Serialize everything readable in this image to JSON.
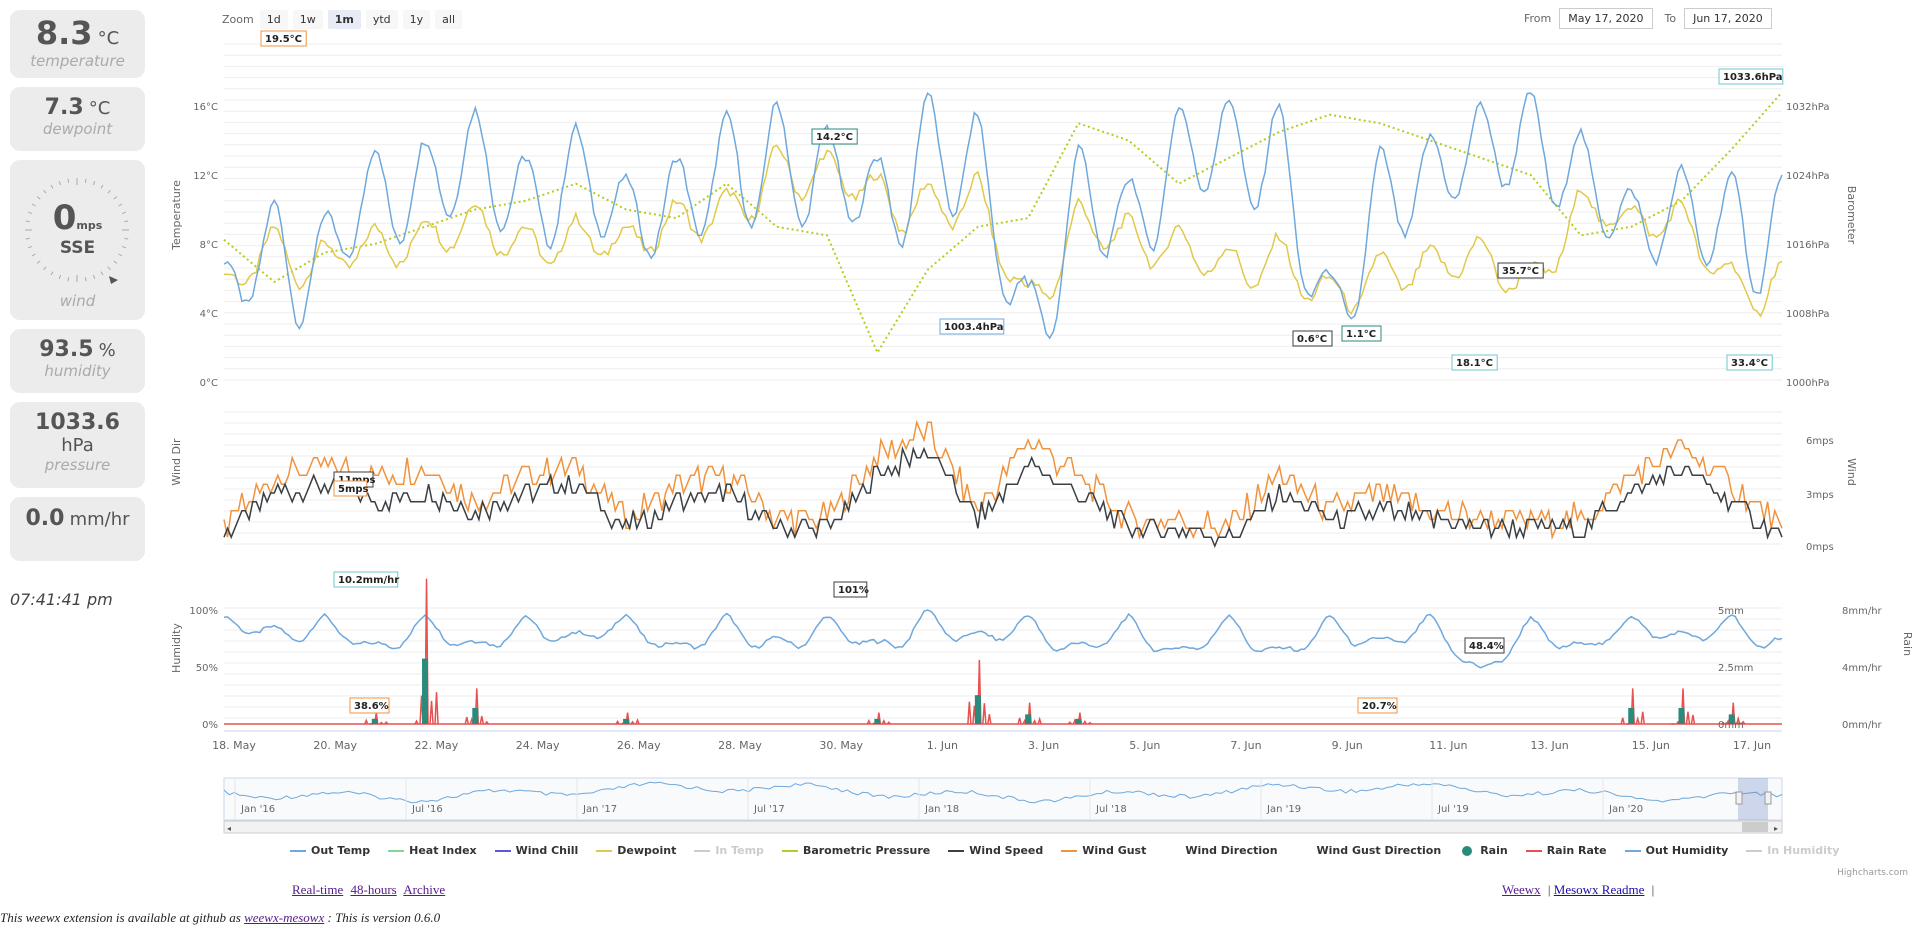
{
  "cards": {
    "temperature": {
      "value": "8.3",
      "unit": "°C",
      "label": "temperature"
    },
    "dewpoint": {
      "value": "7.3",
      "unit": "°C",
      "label": "dewpoint"
    },
    "wind": {
      "value": "0",
      "unit": "mps",
      "direction": "SSE",
      "label": "wind"
    },
    "humidity": {
      "value": "93.5",
      "unit": "%",
      "label": "humidity"
    },
    "pressure": {
      "value": "1033.6",
      "unit": "hPa",
      "label": "pressure"
    },
    "rain": {
      "value": "0.0",
      "unit": "mm/hr",
      "label": "rain"
    }
  },
  "clock": "07:41:41 pm",
  "zoom": {
    "label": "Zoom",
    "buttons": [
      "1d",
      "1w",
      "1m",
      "ytd",
      "1y",
      "all"
    ],
    "active": "1m"
  },
  "range": {
    "from_label": "From",
    "from": "May 17, 2020",
    "to_label": "To",
    "to": "Jun 17, 2020"
  },
  "chart_data": [
    {
      "type": "line",
      "title": "",
      "ylabel": "Temperature",
      "ylabel_right": "Barometer",
      "y_ticks": [
        "16°C",
        "12°C",
        "8°C",
        "4°C",
        "0°C"
      ],
      "y_ticks_right": [
        "1032hPa",
        "1024hPa",
        "1016hPa",
        "1008hPa",
        "1000hPa"
      ],
      "ylim": [
        0,
        18
      ],
      "ylim_right": [
        1000,
        1036
      ],
      "x": [
        "May 17",
        "May 18",
        "May 19",
        "May 20",
        "May 21",
        "May 22",
        "May 23",
        "May 24",
        "May 25",
        "May 26",
        "May 27",
        "May 28",
        "May 29",
        "May 30",
        "May 31",
        "Jun 1",
        "Jun 2",
        "Jun 3",
        "Jun 4",
        "Jun 5",
        "Jun 6",
        "Jun 7",
        "Jun 8",
        "Jun 9",
        "Jun 10",
        "Jun 11",
        "Jun 12",
        "Jun 13",
        "Jun 14",
        "Jun 15",
        "Jun 16",
        "Jun 17"
      ],
      "series": [
        {
          "name": "Out Temp",
          "color": "#6ea8dc",
          "values": [
            7,
            10.5,
            9.6,
            13.6,
            14,
            15.8,
            13,
            14.8,
            11.8,
            13,
            15.5,
            16.2,
            14.8,
            13,
            16.8,
            15.6,
            5.5,
            13.8,
            11.7,
            16,
            16.4,
            16.2,
            6,
            13.5,
            14.2,
            16.1,
            16.8,
            14.5,
            11,
            12.4,
            12,
            12
          ]
        },
        {
          "name": "Dewpoint",
          "color": "#e0c94a",
          "values": [
            6.2,
            9,
            8,
            9,
            9.5,
            10.5,
            9,
            9.5,
            9,
            10.5,
            11,
            13.7,
            13.3,
            12,
            11.5,
            12,
            5.5,
            10.5,
            9.5,
            9,
            7.8,
            8.5,
            6,
            7.5,
            7.7,
            8.4,
            6.5,
            11.3,
            10.2,
            10.5,
            6.8,
            7
          ]
        },
        {
          "name": "Barometric Pressure",
          "color": "#b6cc1e",
          "values": [
            1016.5,
            1011.6,
            1015,
            1016,
            1018,
            1020,
            1021,
            1023,
            1020,
            1019,
            1023,
            1018,
            1017,
            1003.4,
            1013,
            1018,
            1019,
            1030,
            1028,
            1023,
            1026,
            1029,
            1031,
            1030,
            1028,
            1026,
            1024,
            1017,
            1018,
            1021,
            1027,
            1033.6
          ]
        }
      ],
      "annotations": [
        "19.5°C",
        "14.2°C",
        "1003.4hPa",
        "0.6°C",
        "1.1°C",
        "35.7°C",
        "18.1°C",
        "33.4°C",
        "1033.6hPa"
      ]
    },
    {
      "type": "line",
      "title": "",
      "ylabel": "Wind Dir",
      "ylabel_right": "Wind",
      "y_ticks_right": [
        "6mps",
        "3mps",
        "0mps"
      ],
      "ylim": [
        0,
        7
      ],
      "x": [
        "May 17",
        "May 18",
        "May 19",
        "May 20",
        "May 21",
        "May 22",
        "May 23",
        "May 24",
        "May 25",
        "May 26",
        "May 27",
        "May 28",
        "May 29",
        "May 30",
        "May 31",
        "Jun 1",
        "Jun 2",
        "Jun 3",
        "Jun 4",
        "Jun 5",
        "Jun 6",
        "Jun 7",
        "Jun 8",
        "Jun 9",
        "Jun 10",
        "Jun 11",
        "Jun 12",
        "Jun 13",
        "Jun 14",
        "Jun 15",
        "Jun 16",
        "Jun 17"
      ],
      "series": [
        {
          "name": "Wind Speed",
          "color": "#3a3f44",
          "values": [
            0.5,
            3,
            3.5,
            2.5,
            3,
            2,
            3,
            3.5,
            1,
            2.5,
            3,
            1,
            1,
            4,
            5.5,
            1.5,
            4.5,
            3,
            1,
            1,
            0.5,
            3,
            1.5,
            2,
            1.5,
            1,
            1,
            1,
            3,
            4.5,
            2.5,
            0.5
          ]
        },
        {
          "name": "Wind Gust",
          "color": "#f0933e",
          "values": [
            1,
            4,
            4.5,
            4,
            4.5,
            2.5,
            4,
            4.5,
            1.5,
            3.5,
            4,
            1.5,
            1.5,
            5,
            6.5,
            2,
            6,
            4,
            1.5,
            1.5,
            1,
            4,
            2,
            3,
            2,
            1.5,
            1.5,
            1.5,
            4,
            5.5,
            3.5,
            1
          ]
        }
      ],
      "annotations": [
        "11mps",
        "5mps"
      ]
    },
    {
      "type": "line",
      "title": "",
      "ylabel": "Humidity",
      "ylabel_right": "Rain",
      "y_ticks": [
        "100%",
        "50%",
        "0%"
      ],
      "y_ticks_right": [
        "8mm/hr",
        "4mm/hr",
        "0mm/hr"
      ],
      "y_ticks_inner": [
        "5mm",
        "2.5mm",
        "0mm"
      ],
      "ylim": [
        0,
        100
      ],
      "x": [
        "May 17",
        "May 18",
        "May 19",
        "May 20",
        "May 21",
        "May 22",
        "May 23",
        "May 24",
        "May 25",
        "May 26",
        "May 27",
        "May 28",
        "May 29",
        "May 30",
        "May 31",
        "Jun 1",
        "Jun 2",
        "Jun 3",
        "Jun 4",
        "Jun 5",
        "Jun 6",
        "Jun 7",
        "Jun 8",
        "Jun 9",
        "Jun 10",
        "Jun 11",
        "Jun 12",
        "Jun 13",
        "Jun 14",
        "Jun 15",
        "Jun 16",
        "Jun 17"
      ],
      "series": [
        {
          "name": "Out Humidity",
          "color": "#6ea8dc",
          "values": [
            95,
            85,
            95,
            70,
            96,
            72,
            95,
            80,
            96,
            70,
            96,
            75,
            95,
            72,
            101,
            80,
            96,
            70,
            95,
            66,
            96,
            66,
            95,
            75,
            96,
            48.4,
            94,
            70,
            95,
            80,
            96,
            75
          ]
        },
        {
          "name": "Rain Rate",
          "color": "#e8514f",
          "values": [
            0,
            0,
            0,
            0.8,
            10.2,
            2.5,
            0,
            0,
            0.8,
            0,
            0,
            0,
            0,
            0.8,
            0,
            4.5,
            1.5,
            0.8,
            0,
            0,
            0,
            0,
            0,
            0,
            0,
            0,
            0,
            0,
            2.5,
            2.5,
            1.5,
            0
          ]
        }
      ],
      "annotations": [
        "10.2mm/hr",
        "101%",
        "38.6%",
        "48.4%",
        "20.7%"
      ]
    }
  ],
  "x_axis_labels": [
    "18. May",
    "20. May",
    "22. May",
    "24. May",
    "26. May",
    "28. May",
    "30. May",
    "1. Jun",
    "3. Jun",
    "5. Jun",
    "7. Jun",
    "9. Jun",
    "11. Jun",
    "13. Jun",
    "15. Jun",
    "17. Jun"
  ],
  "navigator": {
    "labels": [
      "Jan '16",
      "Jul '16",
      "Jan '17",
      "Jul '17",
      "Jan '18",
      "Jul '18",
      "Jan '19",
      "Jul '19",
      "Jan '20"
    ]
  },
  "legend": [
    {
      "label": "Out Temp",
      "color": "#6ea8dc",
      "style": "line",
      "enabled": true
    },
    {
      "label": "Heat Index",
      "color": "#7fd89a",
      "style": "line",
      "enabled": true
    },
    {
      "label": "Wind Chill",
      "color": "#5a5ad8",
      "style": "line",
      "enabled": true
    },
    {
      "label": "Dewpoint",
      "color": "#e0c94a",
      "style": "line",
      "enabled": true
    },
    {
      "label": "In Temp",
      "color": "#cccccc",
      "style": "line",
      "enabled": false
    },
    {
      "label": "Barometric Pressure",
      "color": "#b6cc1e",
      "style": "line",
      "enabled": true
    },
    {
      "label": "Wind Speed",
      "color": "#3a3f44",
      "style": "line",
      "enabled": true
    },
    {
      "label": "Wind Gust",
      "color": "#f0933e",
      "style": "line",
      "enabled": true
    },
    {
      "label": "Wind Direction",
      "color": "#555555",
      "style": "none",
      "enabled": true
    },
    {
      "label": "Wind Gust Direction",
      "color": "#555555",
      "style": "none",
      "enabled": true
    },
    {
      "label": "Rain",
      "color": "#2a8a7c",
      "style": "dot",
      "enabled": true
    },
    {
      "label": "Rain Rate",
      "color": "#e8514f",
      "style": "line",
      "enabled": true
    },
    {
      "label": "Out Humidity",
      "color": "#6ea8dc",
      "style": "line",
      "enabled": true
    },
    {
      "label": "In Humidity",
      "color": "#cccccc",
      "style": "line",
      "enabled": false
    }
  ],
  "credit": "Highcharts.com",
  "footer": {
    "left_links": [
      "Real-time",
      "48-hours",
      "Archive"
    ],
    "right_links": [
      "Weewx",
      "Mesowx Readme"
    ],
    "note_prefix": "This weewx extension is available at github as ",
    "note_link": "weewx-mesowx",
    "note_suffix": " : This is version 0.6.0"
  },
  "colors": {
    "accent": "#6ea8dc",
    "card_bg": "#ececec"
  }
}
